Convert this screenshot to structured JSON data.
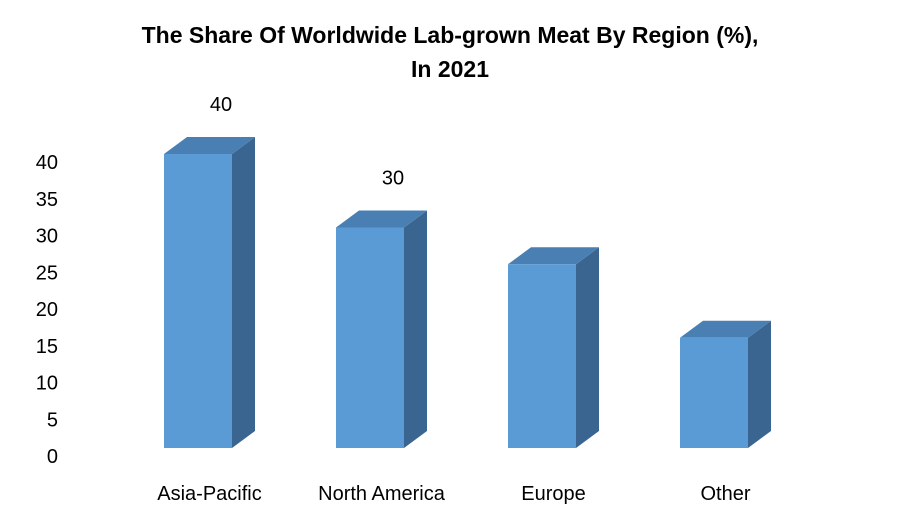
{
  "chart_data": {
    "type": "bar",
    "title_line1": "The Share Of Worldwide Lab-grown Meat By Region (%),",
    "title_line2": "In 2021",
    "xlabel": "",
    "ylabel": "",
    "categories": [
      "Asia-Pacific",
      "North America",
      "Europe",
      "Other"
    ],
    "values": [
      40,
      30,
      25,
      15
    ],
    "data_labels": [
      "40",
      "30",
      "",
      ""
    ],
    "yticks": [
      0,
      5,
      10,
      15,
      20,
      25,
      30,
      35,
      40
    ],
    "ylim": [
      0,
      45
    ],
    "grid": false,
    "legend": "none",
    "colors": {
      "front": "#5b9bd5",
      "top": "#4a7fb3",
      "side": "#3b6591"
    }
  }
}
